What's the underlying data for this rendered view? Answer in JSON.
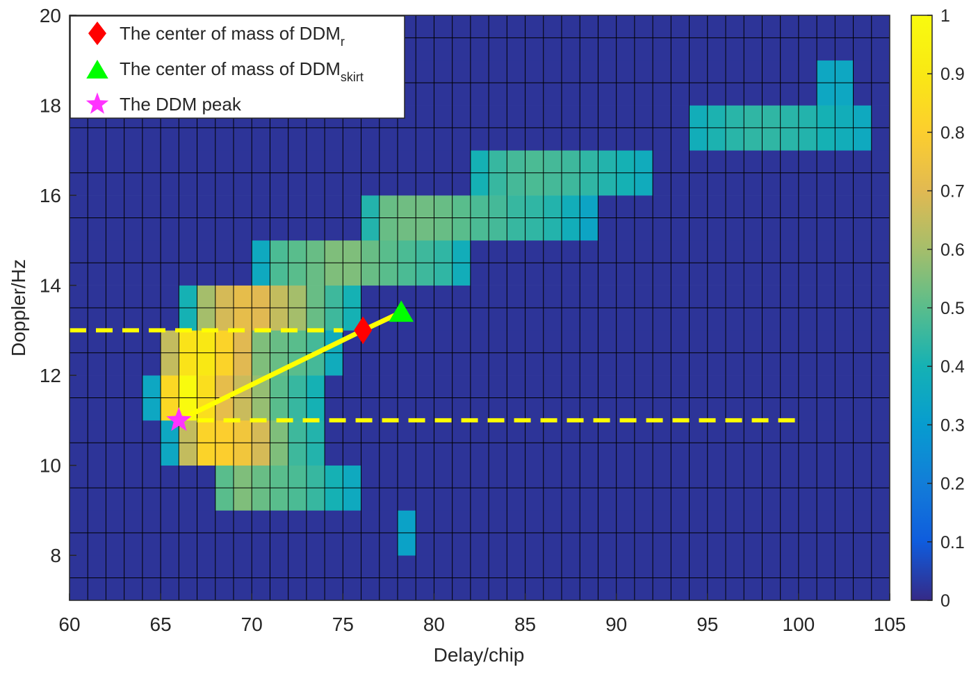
{
  "chart_data": {
    "type": "heatmap",
    "xlabel": "Delay/chip",
    "ylabel": "Doppler/Hz",
    "xlim": [
      60,
      105
    ],
    "ylim": [
      7,
      20
    ],
    "xticks": [
      60,
      65,
      70,
      75,
      80,
      85,
      90,
      95,
      100,
      105
    ],
    "yticks": [
      8,
      10,
      12,
      14,
      16,
      18,
      20
    ],
    "colorbar": {
      "min": 0,
      "max": 1,
      "ticks": [
        "0",
        "0.1",
        "0.2",
        "0.3",
        "0.4",
        "0.5",
        "0.6",
        "0.7",
        "0.8",
        "0.9",
        "1"
      ]
    },
    "background_value": 0.02,
    "rows": [
      {
        "y": 8.5,
        "cells": [
          [
            78,
            0.33
          ]
        ]
      },
      {
        "y": 9.5,
        "cells": [
          [
            68,
            0.5
          ],
          [
            69,
            0.55
          ],
          [
            70,
            0.52
          ],
          [
            71,
            0.5
          ],
          [
            72,
            0.48
          ],
          [
            73,
            0.45
          ],
          [
            74,
            0.4
          ],
          [
            75,
            0.36
          ]
        ]
      },
      {
        "y": 10.5,
        "cells": [
          [
            65,
            0.35
          ],
          [
            66,
            0.65
          ],
          [
            67,
            0.82
          ],
          [
            68,
            0.8
          ],
          [
            69,
            0.76
          ],
          [
            70,
            0.68
          ],
          [
            71,
            0.55
          ],
          [
            72,
            0.46
          ],
          [
            73,
            0.42
          ]
        ]
      },
      {
        "y": 11.5,
        "cells": [
          [
            64,
            0.35
          ],
          [
            65,
            0.84
          ],
          [
            66,
            1.0
          ],
          [
            67,
            0.86
          ],
          [
            68,
            0.72
          ],
          [
            69,
            0.66
          ],
          [
            70,
            0.58
          ],
          [
            71,
            0.5
          ],
          [
            72,
            0.45
          ],
          [
            73,
            0.4
          ]
        ]
      },
      {
        "y": 12.5,
        "cells": [
          [
            65,
            0.65
          ],
          [
            66,
            0.88
          ],
          [
            67,
            0.9
          ],
          [
            68,
            0.82
          ],
          [
            69,
            0.7
          ],
          [
            70,
            0.55
          ],
          [
            71,
            0.52
          ],
          [
            72,
            0.5
          ],
          [
            73,
            0.47
          ],
          [
            74,
            0.37
          ]
        ]
      },
      {
        "y": 13.5,
        "cells": [
          [
            66,
            0.4
          ],
          [
            67,
            0.6
          ],
          [
            68,
            0.68
          ],
          [
            69,
            0.72
          ],
          [
            70,
            0.7
          ],
          [
            71,
            0.65
          ],
          [
            72,
            0.6
          ],
          [
            73,
            0.52
          ],
          [
            74,
            0.46
          ],
          [
            75,
            0.4
          ]
        ]
      },
      {
        "y": 14.5,
        "cells": [
          [
            70,
            0.36
          ],
          [
            71,
            0.48
          ],
          [
            72,
            0.5
          ],
          [
            73,
            0.52
          ],
          [
            74,
            0.55
          ],
          [
            75,
            0.55
          ],
          [
            76,
            0.52
          ],
          [
            77,
            0.5
          ],
          [
            78,
            0.48
          ],
          [
            79,
            0.46
          ],
          [
            80,
            0.44
          ],
          [
            81,
            0.38
          ]
        ]
      },
      {
        "y": 15.5,
        "cells": [
          [
            76,
            0.42
          ],
          [
            77,
            0.52
          ],
          [
            78,
            0.53
          ],
          [
            79,
            0.53
          ],
          [
            80,
            0.52
          ],
          [
            81,
            0.5
          ],
          [
            82,
            0.48
          ],
          [
            83,
            0.47
          ],
          [
            84,
            0.45
          ],
          [
            85,
            0.44
          ],
          [
            86,
            0.42
          ],
          [
            87,
            0.38
          ],
          [
            88,
            0.34
          ]
        ]
      },
      {
        "y": 16.5,
        "cells": [
          [
            82,
            0.4
          ],
          [
            83,
            0.45
          ],
          [
            84,
            0.47
          ],
          [
            85,
            0.48
          ],
          [
            86,
            0.47
          ],
          [
            87,
            0.46
          ],
          [
            88,
            0.44
          ],
          [
            89,
            0.42
          ],
          [
            90,
            0.4
          ],
          [
            91,
            0.37
          ]
        ]
      },
      {
        "y": 17.5,
        "cells": [
          [
            94,
            0.38
          ],
          [
            95,
            0.41
          ],
          [
            96,
            0.43
          ],
          [
            97,
            0.44
          ],
          [
            98,
            0.44
          ],
          [
            99,
            0.43
          ],
          [
            100,
            0.42
          ],
          [
            101,
            0.4
          ],
          [
            102,
            0.38
          ],
          [
            103,
            0.36
          ]
        ]
      },
      {
        "y": 18.5,
        "cells": [
          [
            101,
            0.35
          ],
          [
            102,
            0.35
          ]
        ]
      }
    ],
    "lines": {
      "dashed_upper": {
        "x": [
          60,
          75
        ],
        "y": [
          13,
          13
        ]
      },
      "dashed_lower": {
        "x": [
          67,
          100
        ],
        "y": [
          11,
          11
        ]
      },
      "connector": {
        "x": [
          66,
          76.1,
          78.2
        ],
        "y": [
          11,
          13,
          13.4
        ]
      }
    },
    "markers": {
      "center_r": {
        "x": 76.1,
        "y": 13,
        "color": "#ff0000"
      },
      "center_skirt": {
        "x": 78.2,
        "y": 13.4,
        "color": "#00ff00"
      },
      "peak": {
        "x": 66,
        "y": 11,
        "color": "#ff33ff"
      }
    },
    "legend": {
      "position": "top-left",
      "entries": [
        {
          "prefix": "The center of mass of DDM",
          "sub": "r"
        },
        {
          "prefix": "The center of mass of DDM",
          "sub": "skirt"
        },
        {
          "prefix": "The DDM peak",
          "sub": ""
        }
      ]
    },
    "colors": {
      "line": "#ffff00",
      "grid": "#000000"
    }
  }
}
